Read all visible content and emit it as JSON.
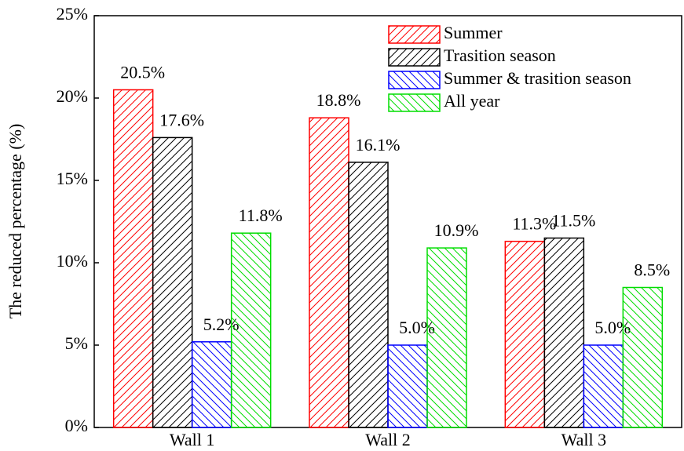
{
  "chart_data": {
    "type": "bar",
    "y_label": "The reduced percentage (%)",
    "categories": [
      "Wall 1",
      "Wall 2",
      "Wall 3"
    ],
    "series": [
      {
        "name": "Summer",
        "color": "#ff0000",
        "hatch": "/",
        "values": [
          20.5,
          18.8,
          11.3
        ],
        "value_labels": [
          "20.5%",
          "18.8%",
          "11.3%"
        ]
      },
      {
        "name": "Trasition season",
        "color": "#000000",
        "hatch": "/",
        "values": [
          17.6,
          16.1,
          11.5
        ],
        "value_labels": [
          "17.6%",
          "16.1%",
          "11.5%"
        ]
      },
      {
        "name": "Summer & trasition season",
        "color": "#0000ff",
        "hatch": "\\",
        "values": [
          5.2,
          5.0,
          5.0
        ],
        "value_labels": [
          "5.2%",
          "5.0%",
          "5.0%"
        ]
      },
      {
        "name": "All year",
        "color": "#00dd00",
        "hatch": "\\",
        "values": [
          11.8,
          10.9,
          8.5
        ],
        "value_labels": [
          "11.8%",
          "10.9%",
          "8.5%"
        ]
      }
    ],
    "ylim": [
      0,
      25
    ],
    "yticks": [
      {
        "value": 0,
        "label": "0%"
      },
      {
        "value": 5,
        "label": "5%"
      },
      {
        "value": 10,
        "label": "10%"
      },
      {
        "value": 15,
        "label": "15%"
      },
      {
        "value": 20,
        "label": "20%"
      },
      {
        "value": 25,
        "label": "25%"
      }
    ],
    "legend": "upper right"
  }
}
